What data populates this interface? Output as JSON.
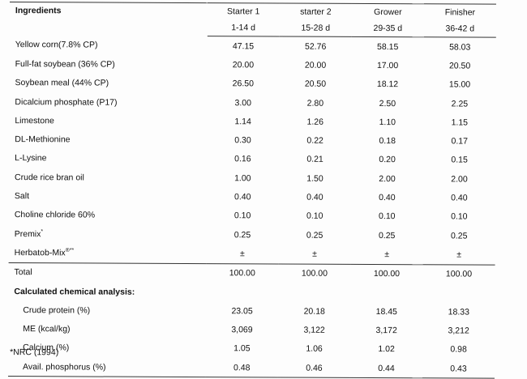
{
  "header": {
    "ingredients": "Ingredients",
    "phases": [
      {
        "name": "Starter 1",
        "days": "1-14 d"
      },
      {
        "name": "starter 2",
        "days": "15-28 d"
      },
      {
        "name": "Grower",
        "days": "29-35 d"
      },
      {
        "name": "Finisher",
        "days": "36-42 d"
      }
    ]
  },
  "ingredients": [
    {
      "name": "Yellow corn(7.8% CP)",
      "values": [
        "47.15",
        "52.76",
        "58.15",
        "58.03"
      ]
    },
    {
      "name": "Full-fat soybean (36% CP)",
      "values": [
        "20.00",
        "20.00",
        "17.00",
        "20.50"
      ]
    },
    {
      "name": "Soybean meal (44% CP)",
      "values": [
        "26.50",
        "20.50",
        "18.12",
        "15.00"
      ]
    },
    {
      "name": "Dicalcium phosphate (P17)",
      "values": [
        "3.00",
        "2.80",
        "2.50",
        "2.25"
      ]
    },
    {
      "name": "Limestone",
      "values": [
        "1.14",
        "1.26",
        "1.10",
        "1.15"
      ]
    },
    {
      "name": "DL-Methionine",
      "values": [
        "0.30",
        "0.22",
        "0.18",
        "0.17"
      ]
    },
    {
      "name": "L-Lysine",
      "values": [
        "0.16",
        "0.21",
        "0.20",
        "0.15"
      ]
    },
    {
      "name": "Crude rice bran oil",
      "values": [
        "1.00",
        "1.50",
        "2.00",
        "2.00"
      ]
    },
    {
      "name": "Salt",
      "values": [
        "0.40",
        "0.40",
        "0.40",
        "0.40"
      ]
    },
    {
      "name": "Choline chloride 60%",
      "values": [
        "0.10",
        "0.10",
        "0.10",
        "0.10"
      ]
    },
    {
      "name": "Premix",
      "sup": "*",
      "values": [
        "0.25",
        "0.25",
        "0.25",
        "0.25"
      ]
    },
    {
      "name": "Herbatob-Mix",
      "sup": "®**",
      "values": [
        "±",
        "±",
        "±",
        "±"
      ]
    }
  ],
  "total": {
    "name": "Total",
    "values": [
      "100.00",
      "100.00",
      "100.00",
      "100.00"
    ]
  },
  "analysis_heading": "Calculated chemical analysis:",
  "analysis": [
    {
      "name": "Crude protein (%)",
      "values": [
        "23.05",
        "20.18",
        "18.45",
        "18.33"
      ]
    },
    {
      "name": "ME (kcal/kg)",
      "values": [
        "3,069",
        "3,122",
        "3,172",
        "3,212"
      ]
    },
    {
      "name": "Calcium (%)",
      "values": [
        "1.05",
        "1.06",
        "1.02",
        "0.98"
      ]
    },
    {
      "name": "Avail. phosphorus (%)",
      "values": [
        "0.48",
        "0.46",
        "0.44",
        "0.43"
      ]
    }
  ],
  "footnote": "*NRC (1994)"
}
